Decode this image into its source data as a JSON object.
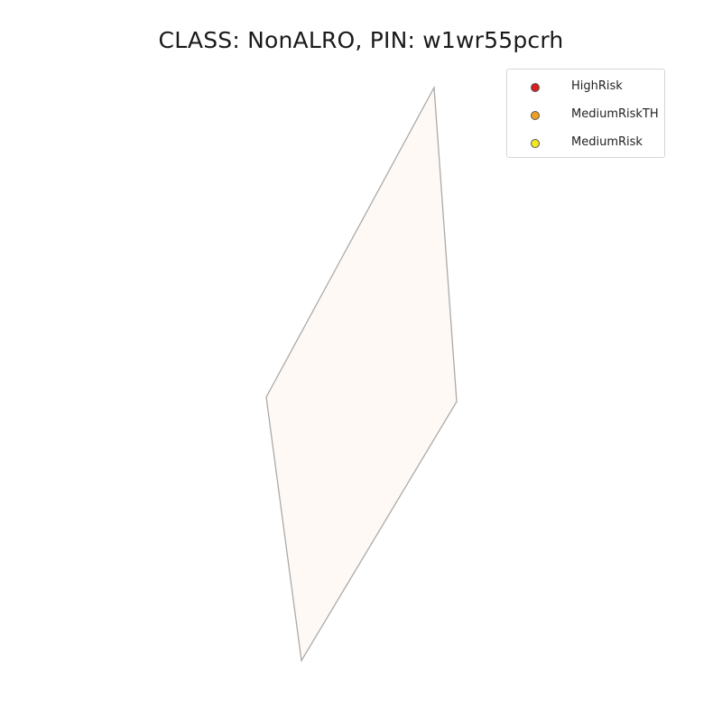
{
  "title": "CLASS: NonALRO, PIN: w1wr55pcrh",
  "parcel": {
    "fill": "#fff9f5",
    "stroke": "#aaaaaa"
  },
  "legend": {
    "items": [
      {
        "label": "HighRisk",
        "color": "#d62020"
      },
      {
        "label": "MediumRiskTH",
        "color": "#f0a020"
      },
      {
        "label": "MediumRisk",
        "color": "#f4e820"
      }
    ]
  }
}
